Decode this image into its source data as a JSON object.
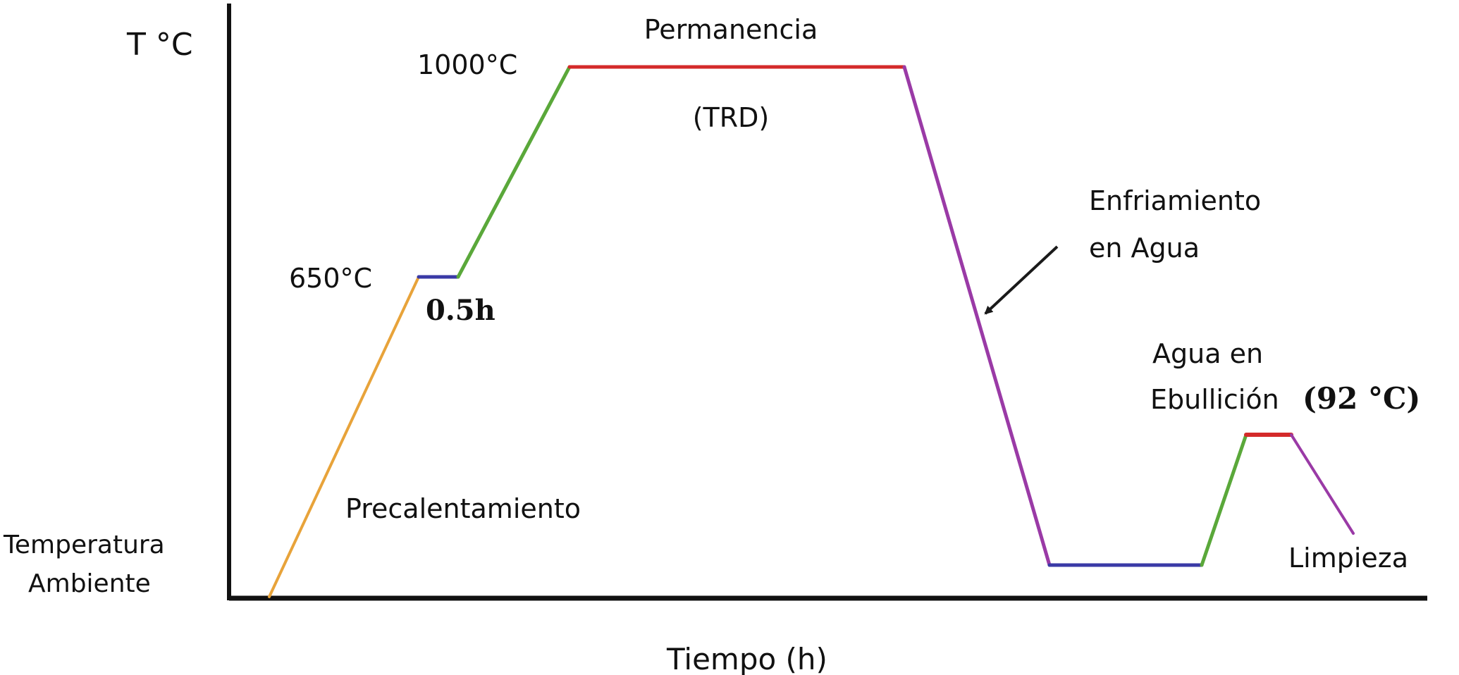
{
  "axes": {
    "y_label": "T °C",
    "x_label": "Tiempo (h)",
    "baseline_label_line1": "Temperatura",
    "baseline_label_line2": "Ambiente"
  },
  "labels": {
    "t_1000": "1000°C",
    "t_650": "650°C",
    "hold_650": "0.5h",
    "permanencia": "Permanencia",
    "trd": "(TRD)",
    "precalentamiento": "Precalentamiento",
    "enfriamiento_line1": "Enfriamiento",
    "enfriamiento_line2": "en Agua",
    "agua_line1": "Agua en",
    "agua_line2": "Ebullición",
    "t_92": "(92 °C)",
    "limpieza": "Limpieza"
  },
  "profile": [
    {
      "name": "precalentamiento-ramp",
      "color": "#e8a33a"
    },
    {
      "name": "hold-650",
      "color": "#3a3aa6"
    },
    {
      "name": "heating-ramp-1000",
      "color": "#5aa83a"
    },
    {
      "name": "permanencia-hold",
      "color": "#d42a2a"
    },
    {
      "name": "enfriamiento-ramp",
      "color": "#9a3aa6"
    },
    {
      "name": "water-hold",
      "color": "#3a3aa6"
    },
    {
      "name": "boiling-heat-ramp",
      "color": "#5aa83a"
    },
    {
      "name": "boiling-hold-92",
      "color": "#d42a2a"
    },
    {
      "name": "limpieza-ramp",
      "color": "#9a3aa6"
    }
  ],
  "colors": {
    "axis": "#111111",
    "arrow": "#1a1a1a"
  }
}
